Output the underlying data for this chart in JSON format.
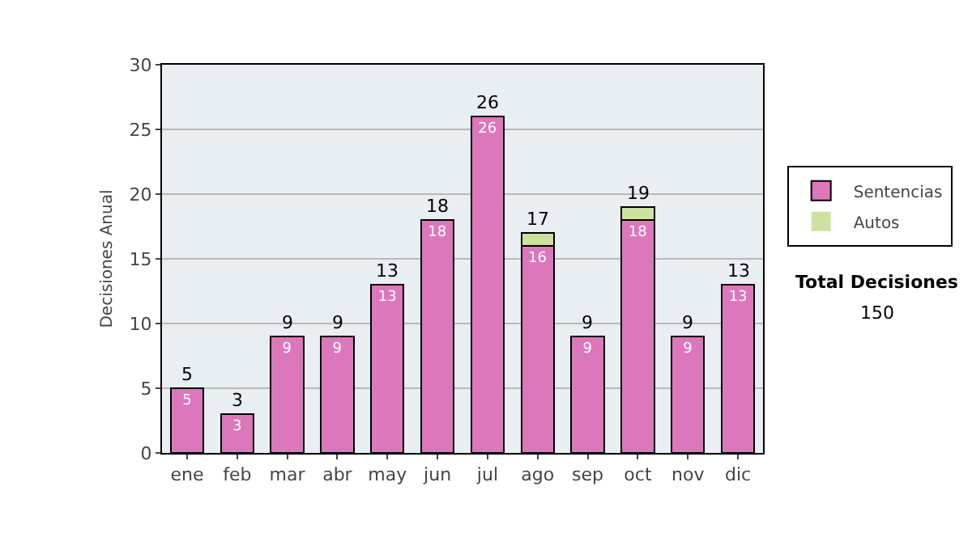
{
  "chart_data": {
    "type": "bar",
    "stacked": true,
    "ylabel": "Decisiones Anual",
    "categories": [
      "ene",
      "feb",
      "mar",
      "abr",
      "may",
      "jun",
      "jul",
      "ago",
      "sep",
      "oct",
      "nov",
      "dic"
    ],
    "series": [
      {
        "name": "Sentencias",
        "color": "#dd77bb",
        "values": [
          5,
          3,
          9,
          9,
          13,
          18,
          26,
          16,
          9,
          18,
          9,
          13
        ],
        "value_labels": [
          "5",
          "3",
          "9",
          "9",
          "13",
          "18",
          "26",
          "16",
          "9",
          "18",
          "9",
          "13"
        ]
      },
      {
        "name": "Autos",
        "color": "#cce3a0",
        "values": [
          0,
          0,
          0,
          0,
          0,
          0,
          0,
          1,
          0,
          1,
          0,
          0
        ]
      }
    ],
    "totals": [
      "5",
      "3",
      "9",
      "9",
      "13",
      "18",
      "26",
      "17",
      "9",
      "19",
      "9",
      "13"
    ],
    "ylim": [
      0,
      30
    ],
    "yticks": [
      0,
      5,
      10,
      15,
      20,
      25,
      30
    ],
    "grid": "y",
    "legend": "right",
    "annotations": [
      "Total Decisiones",
      "150"
    ]
  }
}
